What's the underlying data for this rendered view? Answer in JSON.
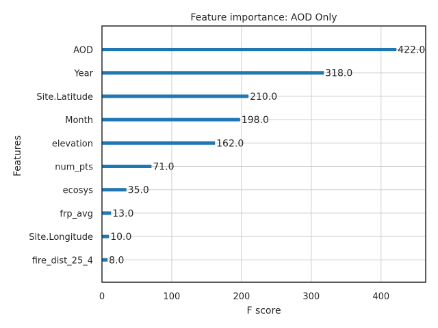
{
  "chart_data": {
    "type": "bar",
    "orientation": "horizontal",
    "title": "Feature importance: AOD Only",
    "xlabel": "F score",
    "ylabel": "Features",
    "xlim": [
      0,
      464
    ],
    "xticks": [
      0,
      100,
      200,
      300,
      400
    ],
    "grid": true,
    "categories": [
      "AOD",
      "Year",
      "Site.Latitude",
      "Month",
      "elevation",
      "num_pts",
      "ecosys",
      "frp_avg",
      "Site.Longitude",
      "fire_dist_25_4"
    ],
    "values": [
      422.0,
      318.0,
      210.0,
      198.0,
      162.0,
      71.0,
      35.0,
      13.0,
      10.0,
      8.0
    ],
    "value_labels": [
      "422.0",
      "318.0",
      "210.0",
      "198.0",
      "162.0",
      "71.0",
      "35.0",
      "13.0",
      "10.0",
      "8.0"
    ],
    "bar_color": "#1f77b4"
  }
}
